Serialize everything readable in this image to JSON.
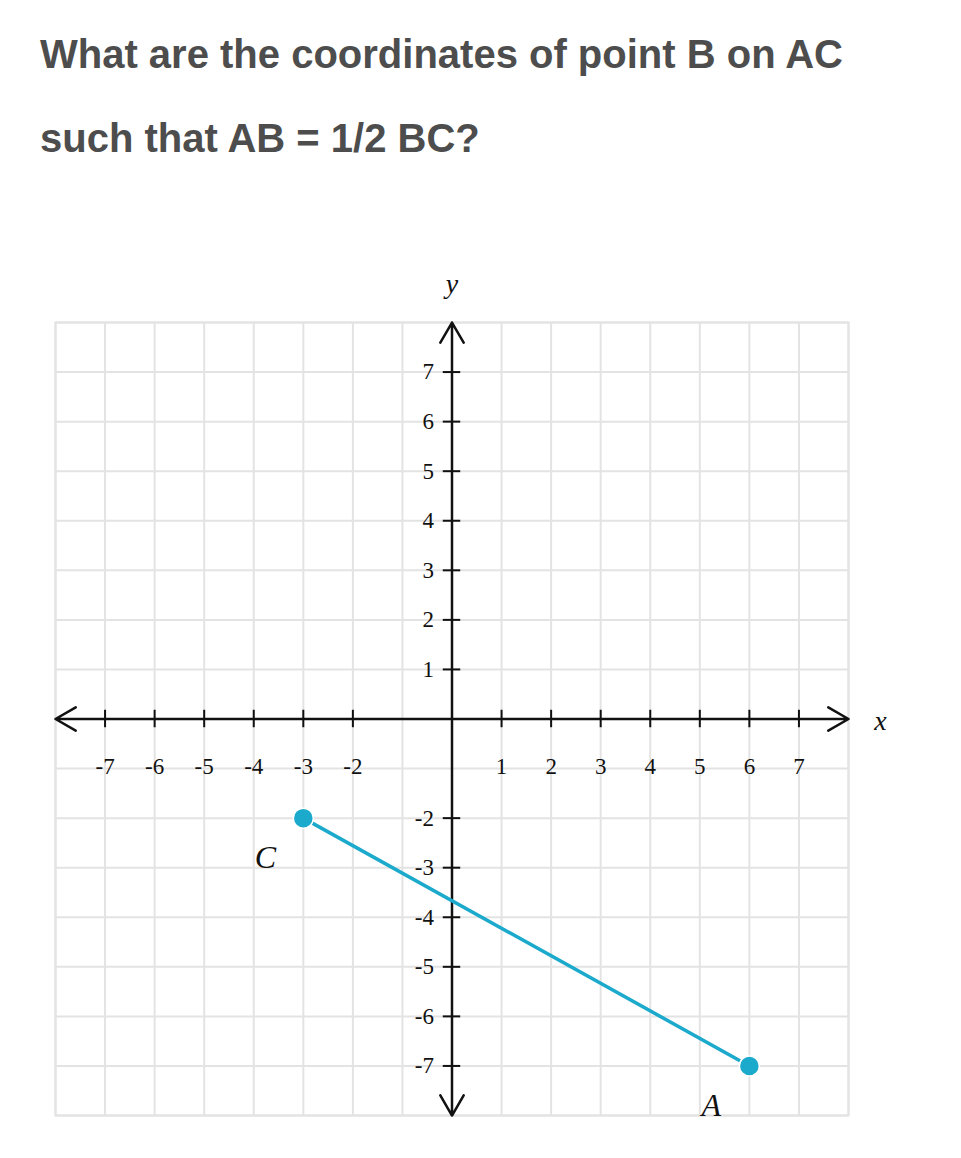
{
  "chart_data": {
    "type": "line",
    "title": "What are the coordinates of point B on AC such that AB = 1/2 BC?",
    "x_label": "x",
    "y_label": "y",
    "x": [
      -3,
      6
    ],
    "values": [
      -2,
      -7
    ],
    "point_labels": [
      "C",
      "A"
    ],
    "color": "#1ba9cc",
    "marker": "circle",
    "xlim": [
      -8,
      8
    ],
    "ylim": [
      -8,
      8
    ],
    "xticks": [
      -7,
      -6,
      -5,
      -4,
      -3,
      -2,
      1,
      2,
      3,
      4,
      5,
      6,
      7
    ],
    "yticks": [
      -7,
      -6,
      -5,
      -4,
      -3,
      -2,
      1,
      2,
      3,
      4,
      5,
      6,
      7
    ],
    "grid": true
  }
}
